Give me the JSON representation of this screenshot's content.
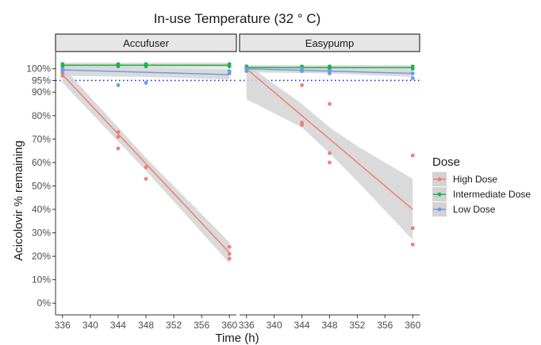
{
  "chart_data": {
    "type": "scatter",
    "title": "In-use Temperature (32 ° C)",
    "xlabel": "Time (h)",
    "ylabel": "Acicolovir % remaining",
    "xlim": [
      335,
      361
    ],
    "ylim": [
      -5,
      107
    ],
    "x_ticks": [
      336,
      340,
      344,
      348,
      352,
      356,
      360
    ],
    "y_ticks": [
      0,
      10,
      20,
      30,
      40,
      50,
      60,
      70,
      80,
      90,
      95,
      100
    ],
    "y_tick_labels": [
      "0%",
      "10%",
      "20%",
      "30%",
      "40%",
      "50%",
      "60%",
      "70%",
      "80%",
      "90%",
      "95%",
      "100%"
    ],
    "reference_line": {
      "y": 95,
      "style": "dotted",
      "color": "#1a1aff"
    },
    "legend": {
      "title": "Dose",
      "position": "right",
      "entries": [
        "High Dose",
        "Intermediate Dose",
        "Low Dose"
      ]
    },
    "colors": {
      "High Dose": "#f07f73",
      "Intermediate Dose": "#22b04b",
      "Low Dose": "#6b9bea",
      "ribbon": "#d3d3d3",
      "strip": "#e6e6e6"
    },
    "grid": false,
    "panels": [
      {
        "name": "Accufuser",
        "series": [
          {
            "name": "High Dose",
            "points": [
              [
                336,
                100
              ],
              [
                336,
                98
              ],
              [
                336,
                97
              ],
              [
                344,
                73
              ],
              [
                344,
                71
              ],
              [
                344,
                66
              ],
              [
                348,
                58
              ],
              [
                348,
                53
              ],
              [
                360,
                24
              ],
              [
                360,
                21
              ],
              [
                360,
                19
              ]
            ],
            "fit": [
              [
                336,
                97.5
              ],
              [
                360,
                21.5
              ]
            ],
            "ci": [
              [
                336,
                94,
                101
              ],
              [
                348,
                56.5,
                62
              ],
              [
                360,
                17,
                26
              ]
            ]
          },
          {
            "name": "Intermediate Dose",
            "points": [
              [
                336,
                102
              ],
              [
                336,
                101
              ],
              [
                344,
                102
              ],
              [
                344,
                101
              ],
              [
                348,
                102
              ],
              [
                348,
                101
              ],
              [
                360,
                102
              ],
              [
                360,
                101
              ]
            ],
            "fit": [
              [
                336,
                101.5
              ],
              [
                360,
                101.5
              ]
            ],
            "ci": [
              [
                336,
                100.5,
                102.5
              ],
              [
                360,
                100.5,
                102.5
              ]
            ]
          },
          {
            "name": "Low Dose",
            "points": [
              [
                336,
                100
              ],
              [
                336,
                99
              ],
              [
                344,
                93
              ],
              [
                348,
                94
              ],
              [
                360,
                99
              ],
              [
                360,
                98
              ]
            ],
            "fit": [
              [
                336,
                99.5
              ],
              [
                348,
                98.5
              ],
              [
                360,
                97.5
              ]
            ],
            "ci": [
              [
                336,
                97,
                102
              ],
              [
                348,
                96.5,
                100.5
              ],
              [
                360,
                95.5,
                100
              ]
            ]
          }
        ]
      },
      {
        "name": "Easypump",
        "series": [
          {
            "name": "High Dose",
            "points": [
              [
                336,
                100
              ],
              [
                344,
                93
              ],
              [
                344,
                77
              ],
              [
                344,
                76
              ],
              [
                348,
                85
              ],
              [
                348,
                64
              ],
              [
                348,
                60
              ],
              [
                360,
                63
              ],
              [
                360,
                32
              ],
              [
                360,
                25
              ]
            ],
            "fit": [
              [
                336,
                100
              ],
              [
                360,
                40
              ]
            ],
            "ci": [
              [
                336,
                87,
                102
              ],
              [
                344,
                75,
                85
              ],
              [
                348,
                64,
                75
              ],
              [
                352,
                52,
                67
              ],
              [
                360,
                27,
                53
              ]
            ]
          },
          {
            "name": "Intermediate Dose",
            "points": [
              [
                336,
                101
              ],
              [
                336,
                100
              ],
              [
                344,
                101
              ],
              [
                344,
                100
              ],
              [
                348,
                101
              ],
              [
                348,
                100
              ],
              [
                360,
                101
              ],
              [
                360,
                100
              ]
            ],
            "fit": [
              [
                336,
                100.5
              ],
              [
                360,
                100.5
              ]
            ],
            "ci": [
              [
                336,
                99.5,
                101.5
              ],
              [
                360,
                99.5,
                101.5
              ]
            ]
          },
          {
            "name": "Low Dose",
            "points": [
              [
                336,
                100
              ],
              [
                336,
                99
              ],
              [
                344,
                100
              ],
              [
                344,
                99
              ],
              [
                348,
                99
              ],
              [
                348,
                98
              ],
              [
                360,
                98
              ],
              [
                360,
                96
              ]
            ],
            "fit": [
              [
                336,
                100
              ],
              [
                360,
                98
              ]
            ],
            "ci": [
              [
                336,
                98.5,
                101.5
              ],
              [
                348,
                98,
                100
              ],
              [
                360,
                96.5,
                99.5
              ]
            ]
          }
        ]
      }
    ]
  }
}
